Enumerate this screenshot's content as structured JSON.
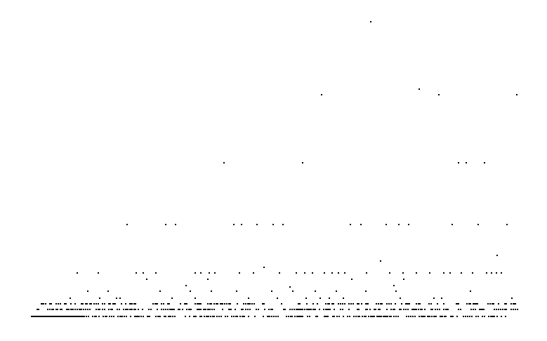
{
  "dot_color": "#000000",
  "background_color": "#ffffff",
  "elements": []
}
